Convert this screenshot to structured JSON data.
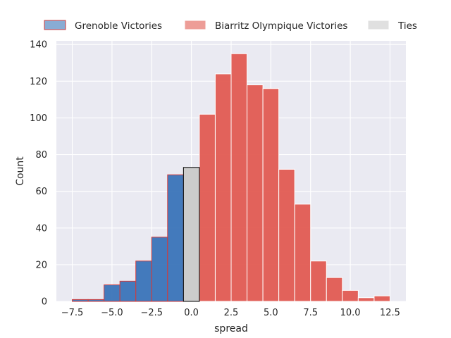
{
  "chart_data": {
    "type": "bar",
    "xlabel": "spread",
    "ylabel": "Count",
    "xlim": [
      -8.5,
      13.5
    ],
    "ylim": [
      0,
      142
    ],
    "x_ticks": [
      -7.5,
      -5.0,
      -2.5,
      0.0,
      2.5,
      5.0,
      7.5,
      10.0,
      12.5
    ],
    "x_tick_labels": [
      "−7.5",
      "−5.0",
      "−2.5",
      "0.0",
      "2.5",
      "5.0",
      "7.5",
      "10.0",
      "12.5"
    ],
    "y_ticks": [
      0,
      20,
      40,
      60,
      80,
      100,
      120,
      140
    ],
    "grid": true,
    "legend_position": "top",
    "bin_width": 1,
    "series": [
      {
        "name": "Grenoble Victories",
        "color": "#3a74b8",
        "edge_color": "#d23b3b",
        "bins": [
          -8,
          -7,
          -6,
          -5,
          -4,
          -3,
          -2,
          -1
        ],
        "values": [
          1,
          1,
          9,
          11,
          22,
          35,
          69,
          0
        ]
      },
      {
        "name": "Biarritz Olympique Victories",
        "color": "#e15b52",
        "edge_color": "#ffffff",
        "bins": [
          0,
          1,
          2,
          3,
          4,
          5,
          6,
          7,
          8,
          9,
          10,
          11,
          12
        ],
        "values": [
          102,
          124,
          135,
          118,
          116,
          72,
          53,
          22,
          13,
          6,
          2,
          3,
          0
        ]
      },
      {
        "name": "Ties",
        "color": "#cccccc",
        "edge_color": "#000000",
        "bins": [
          -1
        ],
        "values": [
          73
        ]
      }
    ]
  }
}
